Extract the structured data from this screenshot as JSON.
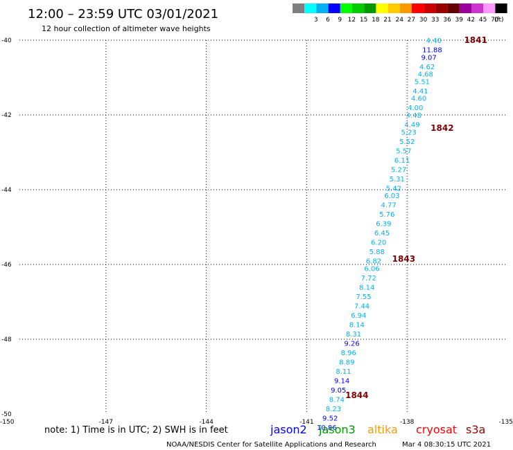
{
  "header": {
    "title": "12:00 – 23:59 UTC 03/01/2021",
    "subtitle": "12 hour collection of altimeter wave heights"
  },
  "color_scale": {
    "unit_label": "(ft)",
    "bins": [
      {
        "label": "",
        "color": "#7f7f7f"
      },
      {
        "label": "3",
        "color": "#00ffff"
      },
      {
        "label": "6",
        "color": "#00b0f0"
      },
      {
        "label": "9",
        "color": "#0000ff"
      },
      {
        "label": "12",
        "color": "#00ff00"
      },
      {
        "label": "15",
        "color": "#00cc00"
      },
      {
        "label": "18",
        "color": "#009900"
      },
      {
        "label": "21",
        "color": "#ffff00"
      },
      {
        "label": "24",
        "color": "#ffcc00"
      },
      {
        "label": "27",
        "color": "#ff9900"
      },
      {
        "label": "30",
        "color": "#ff0000"
      },
      {
        "label": "33",
        "color": "#cc0000"
      },
      {
        "label": "36",
        "color": "#990000"
      },
      {
        "label": "39",
        "color": "#660000"
      },
      {
        "label": "42",
        "color": "#990099"
      },
      {
        "label": "45",
        "color": "#cc33cc"
      },
      {
        "label": "70",
        "color": "#ff99ff"
      },
      {
        "label": "",
        "color": "#000000"
      }
    ]
  },
  "chart_data": {
    "type": "scatter",
    "title": "12:00 – 23:59 UTC 03/01/2021",
    "subtitle": "12 hour collection of altimeter wave heights",
    "xlim": [
      -150,
      -135
    ],
    "ylim": [
      -50,
      -40
    ],
    "x_ticks": [
      -150,
      -147,
      -144,
      -141,
      -138,
      -135
    ],
    "y_ticks": [
      -40,
      -42,
      -44,
      -46,
      -48,
      -50
    ],
    "x_tick_labels": [
      "-150",
      "-147",
      "-144",
      "-141",
      "-138",
      "-135"
    ],
    "y_tick_labels": [
      "-40",
      "-42",
      "-44",
      "-46",
      "-48",
      "-50"
    ],
    "grid": true,
    "series": [
      {
        "name": "",
        "points": [
          {
            "lon": -137.2,
            "lat": -40.0,
            "swh": "4.40",
            "color": "#00b0f0"
          },
          {
            "lon": -137.25,
            "lat": -40.25,
            "swh": "11.88",
            "color": "#0000ff"
          },
          {
            "lon": -137.35,
            "lat": -40.45,
            "swh": "9.07",
            "color": "#0000ff"
          },
          {
            "lon": -137.4,
            "lat": -40.7,
            "swh": "4.62",
            "color": "#00b0f0"
          },
          {
            "lon": -137.45,
            "lat": -40.9,
            "swh": "4.68",
            "color": "#00b0f0"
          },
          {
            "lon": -137.55,
            "lat": -41.1,
            "swh": "5.51",
            "color": "#00b0f0"
          },
          {
            "lon": -137.6,
            "lat": -41.35,
            "swh": "4.41",
            "color": "#00b0f0"
          },
          {
            "lon": -137.65,
            "lat": -41.55,
            "swh": "4.60",
            "color": "#00b0f0"
          },
          {
            "lon": -137.75,
            "lat": -41.8,
            "swh": "4.00",
            "color": "#00b0f0"
          },
          {
            "lon": -137.8,
            "lat": -42.0,
            "swh": "4.48",
            "color": "#00b0f0"
          },
          {
            "lon": -137.85,
            "lat": -42.25,
            "swh": "4.49",
            "color": "#00b0f0"
          },
          {
            "lon": -137.95,
            "lat": -42.45,
            "swh": "5.23",
            "color": "#00b0f0"
          },
          {
            "lon": -138.0,
            "lat": -42.7,
            "swh": "5.52",
            "color": "#00b0f0"
          },
          {
            "lon": -138.1,
            "lat": -42.95,
            "swh": "5.57",
            "color": "#00b0f0"
          },
          {
            "lon": -138.15,
            "lat": -43.2,
            "swh": "6.11",
            "color": "#00b0f0"
          },
          {
            "lon": -138.25,
            "lat": -43.45,
            "swh": "5.27",
            "color": "#00b0f0"
          },
          {
            "lon": -138.3,
            "lat": -43.7,
            "swh": "5.31",
            "color": "#00b0f0"
          },
          {
            "lon": -138.4,
            "lat": -43.95,
            "swh": "5.42",
            "color": "#00b0f0"
          },
          {
            "lon": -138.45,
            "lat": -44.15,
            "swh": "6.03",
            "color": "#00b0f0"
          },
          {
            "lon": -138.55,
            "lat": -44.4,
            "swh": "4.77",
            "color": "#00b0f0"
          },
          {
            "lon": -138.6,
            "lat": -44.65,
            "swh": "5.76",
            "color": "#00b0f0"
          },
          {
            "lon": -138.7,
            "lat": -44.9,
            "swh": "6.39",
            "color": "#00b0f0"
          },
          {
            "lon": -138.75,
            "lat": -45.15,
            "swh": "6.45",
            "color": "#00b0f0"
          },
          {
            "lon": -138.85,
            "lat": -45.4,
            "swh": "6.20",
            "color": "#00b0f0"
          },
          {
            "lon": -138.9,
            "lat": -45.65,
            "swh": "5.88",
            "color": "#00b0f0"
          },
          {
            "lon": -139.0,
            "lat": -45.9,
            "swh": "6.82",
            "color": "#00b0f0"
          },
          {
            "lon": -139.05,
            "lat": -46.1,
            "swh": "6.06",
            "color": "#00b0f0"
          },
          {
            "lon": -139.15,
            "lat": -46.35,
            "swh": "7.72",
            "color": "#00b0f0"
          },
          {
            "lon": -139.2,
            "lat": -46.6,
            "swh": "8.14",
            "color": "#00b0f0"
          },
          {
            "lon": -139.3,
            "lat": -46.85,
            "swh": "7.55",
            "color": "#00b0f0"
          },
          {
            "lon": -139.35,
            "lat": -47.1,
            "swh": "7.44",
            "color": "#00b0f0"
          },
          {
            "lon": -139.45,
            "lat": -47.35,
            "swh": "6.94",
            "color": "#00b0f0"
          },
          {
            "lon": -139.5,
            "lat": -47.6,
            "swh": "8.14",
            "color": "#00b0f0"
          },
          {
            "lon": -139.6,
            "lat": -47.85,
            "swh": "8.31",
            "color": "#00b0f0"
          },
          {
            "lon": -139.65,
            "lat": -48.1,
            "swh": "9.26",
            "color": "#0000ff"
          },
          {
            "lon": -139.75,
            "lat": -48.35,
            "swh": "8.96",
            "color": "#00b0f0"
          },
          {
            "lon": -139.8,
            "lat": -48.6,
            "swh": "8.89",
            "color": "#00b0f0"
          },
          {
            "lon": -139.9,
            "lat": -48.85,
            "swh": "8.11",
            "color": "#00b0f0"
          },
          {
            "lon": -139.95,
            "lat": -49.1,
            "swh": "9.14",
            "color": "#0000ff"
          },
          {
            "lon": -140.05,
            "lat": -49.35,
            "swh": "9.05",
            "color": "#0000ff"
          },
          {
            "lon": -140.1,
            "lat": -49.6,
            "swh": "8.74",
            "color": "#00b0f0"
          },
          {
            "lon": -140.2,
            "lat": -49.85,
            "swh": "8.23",
            "color": "#00b0f0"
          },
          {
            "lon": -140.3,
            "lat": -50.1,
            "swh": "9.52",
            "color": "#0000ff"
          },
          {
            "lon": -140.4,
            "lat": -50.35,
            "swh": "10.86",
            "color": "#0000ff"
          }
        ]
      }
    ],
    "time_labels": [
      {
        "label": "1841",
        "lon": -135.95,
        "lat": -40.0
      },
      {
        "label": "1842",
        "lon": -136.95,
        "lat": -42.35
      },
      {
        "label": "1843",
        "lon": -138.1,
        "lat": -45.85
      },
      {
        "label": "1844",
        "lon": -139.5,
        "lat": -49.5
      }
    ]
  },
  "footer": {
    "note": "note:  1) Time is in UTC;  2) SWH is in feet",
    "satellites": [
      {
        "name": "jason2",
        "color": "#0000ff"
      },
      {
        "name": "jason3",
        "color": "#009900"
      },
      {
        "name": "altika",
        "color": "#ff9900"
      },
      {
        "name": "cryosat",
        "color": "#ff0000"
      },
      {
        "name": "s3a",
        "color": "#990000"
      }
    ],
    "credit": "NOAA/NESDIS Center for Satellite Applications and Research",
    "timestamp": "Mar  4 08:30:15 UTC 2021"
  }
}
